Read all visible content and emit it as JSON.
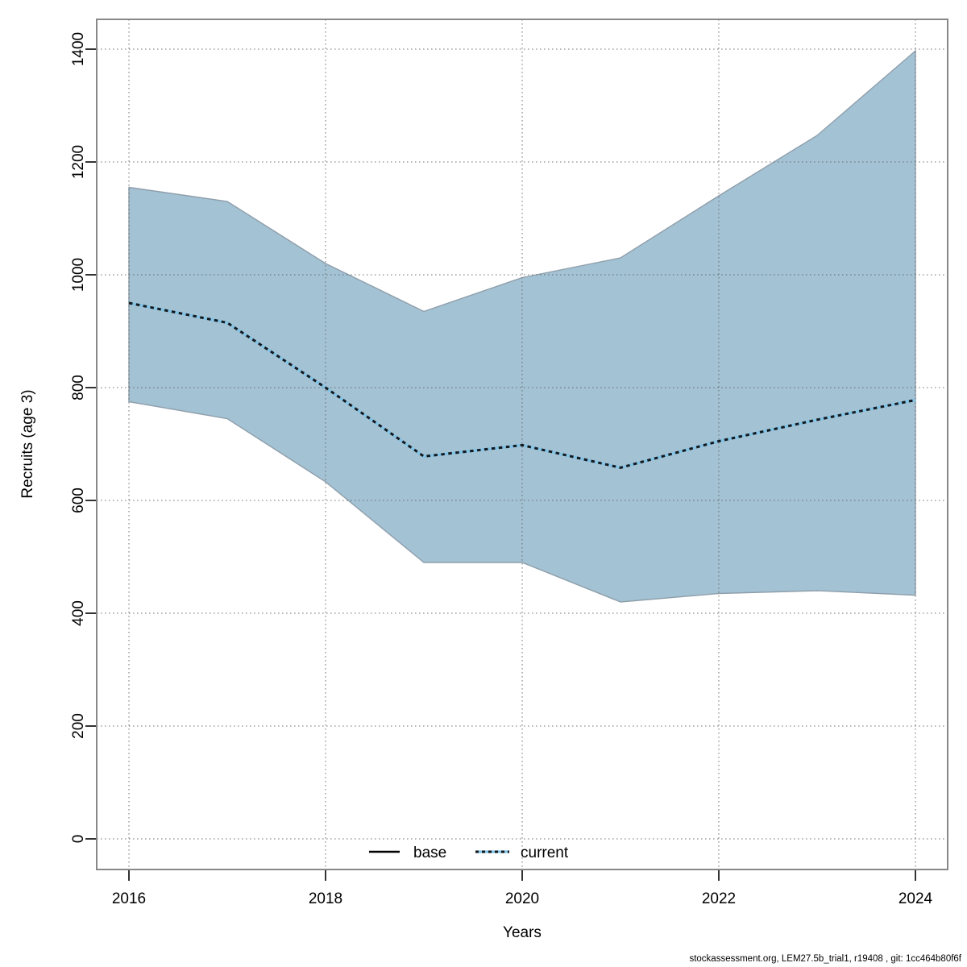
{
  "page": {
    "background": "#ffffff"
  },
  "footer": {
    "text": "stockassessment.org, LEM27.5b_trial1, r19408 , git: 1cc464b80f6f"
  },
  "chart_data": {
    "type": "area",
    "title": "",
    "xlabel": "Years",
    "ylabel": "Recruits (age 3)",
    "x": [
      2016,
      2017,
      2018,
      2019,
      2020,
      2021,
      2022,
      2023,
      2024
    ],
    "series": [
      {
        "name": "current",
        "role": "median-line",
        "style": "dotted",
        "values": [
          950,
          915,
          800,
          678,
          698,
          658,
          705,
          743,
          778
        ]
      },
      {
        "name": "ci_upper",
        "role": "band-upper",
        "values": [
          1155,
          1130,
          1020,
          935,
          995,
          1030,
          1140,
          1247,
          1397
        ]
      },
      {
        "name": "ci_lower",
        "role": "band-lower",
        "values": [
          775,
          745,
          633,
          490,
          490,
          420,
          435,
          440,
          432
        ]
      }
    ],
    "x_ticks": [
      2016,
      2018,
      2020,
      2022,
      2024
    ],
    "y_ticks": [
      0,
      200,
      400,
      600,
      800,
      1000,
      1200,
      1400
    ],
    "xlim": [
      2015.65,
      2024.35
    ],
    "ylim": [
      -60,
      1455
    ],
    "grid": "dotted",
    "legend": [
      {
        "label": "base",
        "line": "solid",
        "color": "#000000"
      },
      {
        "label": "current",
        "line": "dotted",
        "color": "#7fc3e6"
      }
    ],
    "legend_position": "inside-bottom-center",
    "colors": {
      "band_fill": "#a3c2d4",
      "band_edge": "#8f9fab",
      "line_underlay": "#7fc3e6",
      "line_dash": "#14191e",
      "grid": "#5f5f5f",
      "box_border": "#888888",
      "tick": "#333333"
    }
  }
}
